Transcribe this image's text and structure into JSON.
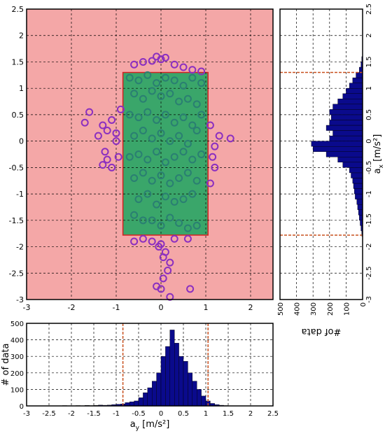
{
  "chart_data": [
    {
      "type": "scatter",
      "xlim": [
        -3,
        2.5
      ],
      "ylim": [
        -3,
        2.5
      ],
      "xticks": [
        -3,
        -2,
        -1,
        0,
        1,
        2
      ],
      "yticks": [
        -3,
        -2.5,
        -2,
        -1.5,
        -1,
        -0.5,
        0,
        0.5,
        1,
        1.5,
        2,
        2.5
      ],
      "grid": true,
      "background": "#f4a7a7",
      "region": {
        "x": [
          -0.85,
          1.05
        ],
        "y": [
          -1.78,
          1.3
        ],
        "color": "#3aa66a",
        "edge": "#d42020"
      },
      "series": [
        {
          "color": "#8b2fc0",
          "x": [
            -0.4,
            -0.2,
            0,
            -0.1,
            0.3,
            0.5,
            0.7,
            0.9,
            -0.6,
            0.1,
            -1.6,
            -1.7,
            -1.3,
            -1.2,
            -1.4,
            -1.1,
            -1.0,
            -1.25,
            -1.3,
            -1.1,
            -0.95,
            -1.2,
            -1.0,
            -0.9,
            1.3,
            1.2,
            1.15,
            1.1,
            1.55,
            1.2,
            1.1,
            -0.4,
            -0.2,
            0,
            0.3,
            0.6,
            -0.6,
            0.1,
            0.2,
            0.15,
            0.05,
            -0.1,
            0,
            0.2,
            0.65,
            0.05,
            -0.05
          ],
          "y": [
            1.5,
            1.52,
            1.55,
            1.6,
            1.45,
            1.4,
            1.35,
            1.32,
            1.45,
            1.58,
            0.55,
            0.35,
            0.3,
            0.2,
            0.1,
            0.4,
            0.15,
            -0.2,
            -0.45,
            -0.5,
            -0.3,
            -0.35,
            0,
            0.6,
            0.1,
            -0.1,
            -0.3,
            0.3,
            0.05,
            -0.5,
            -0.8,
            -1.85,
            -1.9,
            -1.95,
            -1.85,
            -1.85,
            -1.9,
            -2.1,
            -2.3,
            -2.45,
            -2.6,
            -2.75,
            -2.8,
            -2.95,
            -2.8,
            -2.2,
            -2.0
          ]
        },
        {
          "color": "#2a7f72",
          "x": [
            -0.7,
            -0.5,
            -0.3,
            -0.1,
            0.1,
            0.3,
            0.5,
            0.7,
            0.9,
            -0.6,
            -0.4,
            -0.2,
            0,
            0.2,
            0.4,
            0.6,
            0.8,
            -0.7,
            -0.5,
            -0.3,
            -0.1,
            0.1,
            0.3,
            0.5,
            0.7,
            0.9,
            -0.6,
            -0.4,
            -0.2,
            0,
            0.2,
            0.4,
            0.6,
            0.8,
            -0.7,
            -0.5,
            -0.3,
            -0.1,
            0.1,
            0.3,
            0.5,
            0.7,
            0.9,
            -0.6,
            -0.4,
            -0.2,
            0,
            0.2,
            0.4,
            0.6,
            0.8,
            -0.5,
            -0.3,
            -0.1,
            0.1,
            0.3,
            0.5,
            0.7,
            -0.2,
            0.2,
            0,
            0.4,
            -0.4,
            0.6,
            -0.6,
            0.8
          ],
          "y": [
            1.2,
            1.15,
            1.25,
            1.1,
            1.2,
            1.15,
            1.05,
            1.2,
            1.1,
            0.9,
            0.8,
            0.95,
            0.85,
            0.9,
            0.75,
            0.8,
            0.7,
            0.5,
            0.45,
            0.55,
            0.4,
            0.5,
            0.35,
            0.45,
            0.3,
            0.5,
            0.1,
            0.2,
            0.05,
            0.15,
            0,
            0.1,
            -0.05,
            0.2,
            -0.3,
            -0.25,
            -0.35,
            -0.2,
            -0.4,
            -0.3,
            -0.2,
            -0.35,
            -0.25,
            -0.7,
            -0.6,
            -0.75,
            -0.65,
            -0.8,
            -0.7,
            -0.6,
            -0.75,
            -1.1,
            -1.0,
            -1.2,
            -1.05,
            -1.15,
            -1.1,
            -1.0,
            -1.5,
            -1.45,
            -1.6,
            -1.55,
            -1.5,
            -1.65,
            -1.4,
            -1.6
          ]
        }
      ]
    },
    {
      "type": "histogram",
      "y_label": "# of data",
      "x_label": {
        "base": "a",
        "sub": "y",
        "unit": " [m/s²]"
      },
      "xlim": [
        -3,
        2.5
      ],
      "ylim": [
        0,
        500
      ],
      "xticks": [
        -3,
        -2.5,
        -2,
        -1.5,
        -1,
        -0.5,
        0,
        0.5,
        1,
        1.5,
        2,
        2.5
      ],
      "yticks": [
        0,
        100,
        200,
        300,
        400,
        500
      ],
      "grid": true,
      "color": "#0a0a8c",
      "threshold_color": "#c8501e",
      "thresholds": [
        -0.85,
        1.05
      ],
      "bins": [
        -2.5,
        -2.4,
        -2.3,
        -2.2,
        -2.1,
        -2.0,
        -1.9,
        -1.8,
        -1.7,
        -1.6,
        -1.5,
        -1.4,
        -1.3,
        -1.2,
        -1.1,
        -1.0,
        -0.9,
        -0.8,
        -0.7,
        -0.6,
        -0.5,
        -0.4,
        -0.3,
        -0.2,
        -0.1,
        0,
        0.1,
        0.2,
        0.3,
        0.4,
        0.5,
        0.6,
        0.7,
        0.8,
        0.9,
        1.0,
        1.1,
        1.2,
        1.3,
        1.4,
        1.5
      ],
      "values": [
        0,
        0,
        0,
        2,
        0,
        0,
        2,
        0,
        3,
        2,
        3,
        5,
        4,
        5,
        8,
        10,
        12,
        20,
        25,
        30,
        50,
        80,
        110,
        150,
        200,
        300,
        360,
        460,
        380,
        300,
        270,
        200,
        150,
        100,
        60,
        30,
        15,
        8,
        4,
        2
      ]
    },
    {
      "type": "histogram-horizontal",
      "x_label": "#of data",
      "y_label": {
        "base": "a",
        "sub": "x",
        "unit": " [m/s²]"
      },
      "xlim": [
        0,
        500
      ],
      "ylim": [
        -3,
        2.5
      ],
      "xticks": [
        0,
        100,
        200,
        300,
        400,
        500
      ],
      "yticks": [
        -3,
        -2.5,
        -2,
        -1.5,
        -1,
        -0.5,
        0,
        0.5,
        1,
        1.5,
        2,
        2.5
      ],
      "grid": true,
      "color": "#0a0a8c",
      "threshold_color": "#c8501e",
      "thresholds": [
        -1.78,
        1.3
      ],
      "bins": [
        -1.8,
        -1.7,
        -1.6,
        -1.5,
        -1.4,
        -1.3,
        -1.2,
        -1.1,
        -1.0,
        -0.9,
        -0.8,
        -0.7,
        -0.6,
        -0.5,
        -0.4,
        -0.3,
        -0.2,
        -0.1,
        0,
        0.1,
        0.2,
        0.3,
        0.4,
        0.5,
        0.6,
        0.7,
        0.8,
        0.9,
        1.0,
        1.1,
        1.2,
        1.3,
        1.4,
        1.5,
        1.6
      ],
      "values": [
        5,
        10,
        15,
        20,
        25,
        30,
        35,
        45,
        50,
        55,
        60,
        70,
        80,
        120,
        150,
        220,
        300,
        310,
        200,
        180,
        220,
        200,
        190,
        200,
        180,
        150,
        120,
        100,
        80,
        60,
        40,
        20,
        10,
        5
      ]
    }
  ]
}
